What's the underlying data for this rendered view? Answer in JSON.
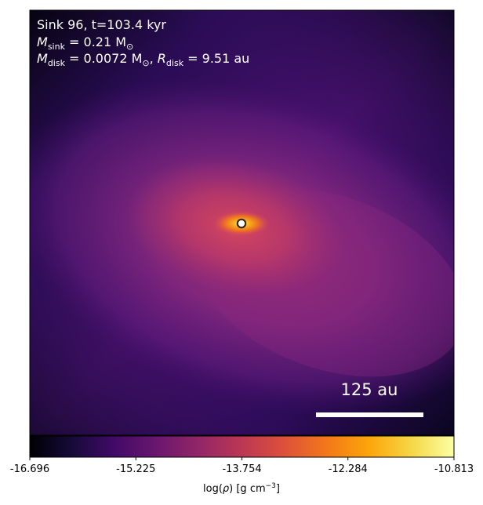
{
  "chart_data": {
    "type": "heatmap",
    "annotations": {
      "line1": "Sink 96, t=103.4 kyr",
      "line2": {
        "label": "M",
        "sub": "sink",
        "rest": " = 0.21 M",
        "sun": "⊙"
      },
      "line3": {
        "label1": "M",
        "sub1": "disk",
        "rest1": " = 0.0072 M",
        "sun": "⊙",
        "sep": ", ",
        "label2": "R",
        "sub2": "disk",
        "rest2": " = 9.51 au"
      }
    },
    "scale_bar": {
      "label": "125 au",
      "length_au": 125
    },
    "sink_marker": {
      "position": "center"
    },
    "colorbar": {
      "colormap": "inferno",
      "min": -16.696,
      "max": -10.813,
      "tick_labels": [
        "-16.696",
        "-15.225",
        "-13.754",
        "-12.284",
        "-10.813"
      ],
      "tick_values": [
        -16.696,
        -15.225,
        -13.754,
        -12.284,
        -10.813
      ],
      "label": {
        "prefix": "log(",
        "rho": "ρ",
        "suffix": ") [g cm",
        "exp": "−3",
        "close": "]"
      }
    },
    "colors": {
      "background_low": "#060412",
      "mid_purple": "#3b0f6f",
      "envelope": "#8c2981",
      "inner": "#c43c65",
      "core": "#f98e09",
      "peak": "#fcffa4"
    }
  }
}
